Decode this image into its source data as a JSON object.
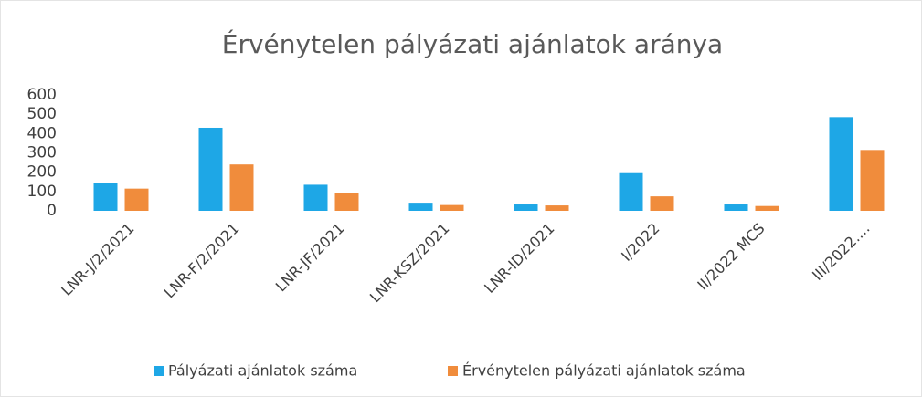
{
  "chart_data": {
    "type": "bar",
    "title": "Érvénytelen pályázati ajánlatok aránya",
    "categories": [
      "LNR-J/2/2021",
      "LNR-F/2/2021",
      "LNR-JF/2021",
      "LNR-KSZ/2021",
      "LNR-ID/2021",
      "I/2022",
      "II/2022 MCS",
      "III/2022...."
    ],
    "series": [
      {
        "name": "Pályázati ajánlatok száma",
        "color": "#1ea7e6",
        "values": [
          145,
          430,
          135,
          42,
          33,
          195,
          33,
          485
        ]
      },
      {
        "name": "Érvénytelen pályázati ajánlatok száma",
        "color": "#f08c3c",
        "values": [
          115,
          240,
          90,
          30,
          28,
          75,
          25,
          315
        ]
      }
    ],
    "ylim": [
      0,
      600
    ],
    "yticks": [
      0,
      100,
      200,
      300,
      400,
      500,
      600
    ],
    "grid": false,
    "legend": "bottom"
  }
}
